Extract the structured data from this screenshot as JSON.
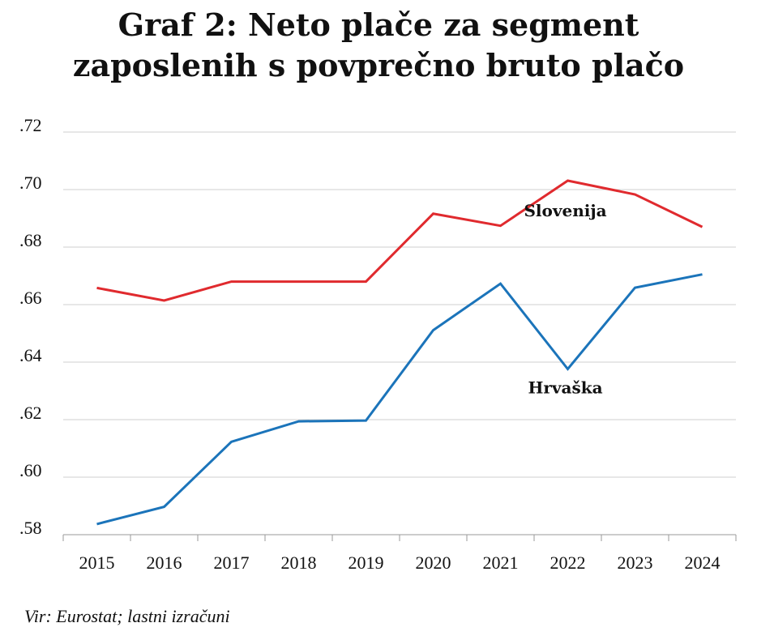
{
  "title": {
    "line1": "Graf 2: Neto plače za segment",
    "line2": "zaposlenih s povprečno bruto plačo"
  },
  "source": "Vir: Eurostat; lastni izračuni",
  "chart_data": {
    "type": "line",
    "x": [
      "2015",
      "2016",
      "2017",
      "2018",
      "2019",
      "2020",
      "2021",
      "2022",
      "2023",
      "2024"
    ],
    "y_ticks": [
      ".58",
      ".60",
      ".62",
      ".64",
      ".66",
      ".68",
      ".70",
      ".72"
    ],
    "ylim": [
      0.58,
      0.72
    ],
    "grid": true,
    "series": [
      {
        "name": "Slovenija",
        "color": "#e02a2e",
        "values": [
          0.6658,
          0.6614,
          0.668,
          0.668,
          0.668,
          0.6916,
          0.6874,
          0.7031,
          0.6983,
          0.687
        ]
      },
      {
        "name": "Hrvaška",
        "color": "#1b74ba",
        "values": [
          0.5837,
          0.5897,
          0.6123,
          0.6194,
          0.6197,
          0.6511,
          0.6673,
          0.6376,
          0.6659,
          0.6705
        ]
      }
    ]
  }
}
